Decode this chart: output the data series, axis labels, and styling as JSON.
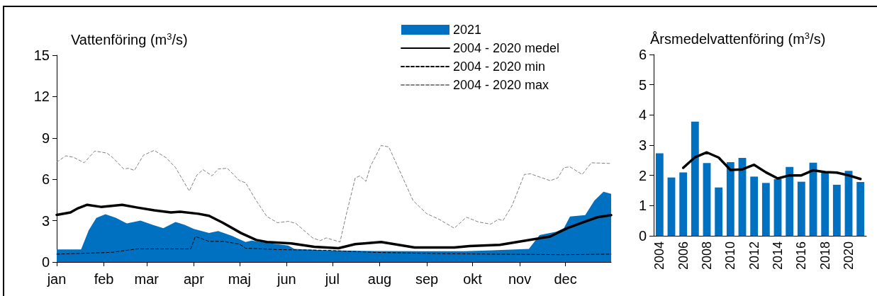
{
  "chart_data": [
    {
      "type": "line",
      "ylabel": "Vattenföring (m$^{3}$/s)",
      "legend": "top",
      "marker": "none",
      "xlim": [
        "--01-01",
        "--12-31"
      ],
      "xticks": [
        {
          "value": "--01-01",
          "label": "jan"
        },
        {
          "value": "--02-01",
          "label": "feb"
        },
        {
          "value": "--03-01",
          "label": "mar"
        },
        {
          "value": "--04-01",
          "label": "apr"
        },
        {
          "value": "--05-01",
          "label": "maj"
        },
        {
          "value": "--06-01",
          "label": "jun"
        },
        {
          "value": "--07-01",
          "label": "jul"
        },
        {
          "value": "--08-01",
          "label": "aug"
        },
        {
          "value": "--09-01",
          "label": "sep"
        },
        {
          "value": "--10-01",
          "label": "okt"
        },
        {
          "value": "--11-01",
          "label": "nov"
        },
        {
          "value": "--12-01",
          "label": "dec"
        }
      ],
      "ylim": [
        0,
        15
      ],
      "yticks": [
        0,
        3,
        6,
        9,
        12,
        15
      ],
      "series": [
        {
          "name": "2021",
          "type": "area",
          "color": "#0070c0",
          "x": [
            "--01-01",
            "--01-17",
            "--01-22",
            "--01-27",
            "--02-02",
            "--02-09",
            "--02-16",
            "--02-25",
            "--03-05",
            "--03-12",
            "--03-20",
            "--03-26",
            "--04-01",
            "--04-11",
            "--04-17",
            "--04-26",
            "--05-05",
            "--05-09",
            "--05-18",
            "--06-02",
            "--06-06",
            "--06-27",
            "--07-29",
            "--08-29",
            "--09-26",
            "--10-14",
            "--11-07",
            "--11-14",
            "--11-25",
            "--11-30",
            "--12-04",
            "--12-14",
            "--12-20",
            "--12-26",
            "--12-31"
          ],
          "values": [
            0.91,
            0.91,
            2.3,
            3.2,
            3.47,
            3.2,
            2.8,
            3.0,
            2.7,
            2.45,
            2.9,
            2.7,
            2.4,
            2.1,
            2.25,
            1.9,
            1.45,
            1.55,
            1.4,
            1.2,
            0.95,
            0.85,
            0.8,
            0.78,
            0.78,
            0.85,
            0.95,
            1.95,
            2.2,
            2.45,
            3.3,
            3.4,
            4.45,
            5.1,
            4.95
          ]
        },
        {
          "name": "2004 - 2020 medel",
          "color": "#000000",
          "line_style": "solid",
          "x": [
            "--01-01",
            "--01-10",
            "--01-15",
            "--01-21",
            "--01-30",
            "--02-13",
            "--02-23",
            "--03-06",
            "--03-17",
            "--03-23",
            "--04-04",
            "--04-11",
            "--04-20",
            "--05-02",
            "--05-12",
            "--05-19",
            "--06-04",
            "--06-19",
            "--06-27",
            "--07-05",
            "--07-16",
            "--08-02",
            "--08-24",
            "--09-19",
            "--09-29",
            "--10-19",
            "--11-02",
            "--11-21",
            "--12-02",
            "--12-13",
            "--12-22",
            "--12-31"
          ],
          "values": [
            3.42,
            3.6,
            3.9,
            4.15,
            4.0,
            4.15,
            3.95,
            3.75,
            3.6,
            3.65,
            3.5,
            3.35,
            2.85,
            2.1,
            1.6,
            1.45,
            1.35,
            1.1,
            1.05,
            1.0,
            1.3,
            1.45,
            1.05,
            1.05,
            1.15,
            1.25,
            1.5,
            1.85,
            2.45,
            2.9,
            3.25,
            3.4
          ]
        },
        {
          "name": "2004 - 2020 min",
          "color": "#000000",
          "line_style": "dashed",
          "x": [
            "--01-01",
            "--01-16",
            "--02-06",
            "--02-23",
            "--03-30",
            "--04-02",
            "--04-11",
            "--04-20",
            "--05-01",
            "--05-05",
            "--05-27",
            "--06-27",
            "--07-29",
            "--09-13",
            "--11-30",
            "--12-31"
          ],
          "values": [
            0.57,
            0.62,
            0.7,
            0.95,
            0.95,
            1.85,
            1.5,
            1.5,
            1.3,
            1.0,
            0.9,
            0.85,
            0.7,
            0.6,
            0.53,
            0.57
          ]
        },
        {
          "name": "2004 - 2020 max",
          "color": "#808080",
          "line_style": "dashed",
          "x": [
            "--01-01",
            "--01-07",
            "--01-12",
            "--01-19",
            "--01-26",
            "--02-03",
            "--02-07",
            "--02-14",
            "--02-17",
            "--02-21",
            "--02-27",
            "--03-06",
            "--03-14",
            "--03-20",
            "--03-29",
            "--04-03",
            "--04-07",
            "--04-13",
            "--04-17",
            "--04-23",
            "--05-01",
            "--05-05",
            "--05-12",
            "--05-19",
            "--05-26",
            "--06-02",
            "--06-07",
            "--06-18",
            "--06-23",
            "--06-27",
            "--07-06",
            "--07-10",
            "--07-16",
            "--07-19",
            "--07-23",
            "--07-26",
            "--08-02",
            "--08-07",
            "--08-13",
            "--08-23",
            "--09-01",
            "--09-09",
            "--09-19",
            "--09-27",
            "--10-05",
            "--10-13",
            "--10-18",
            "--10-21",
            "--10-27",
            "--11-04",
            "--11-08",
            "--11-21",
            "--11-26",
            "--11-30",
            "--12-04",
            "--12-12",
            "--12-18",
            "--12-30"
          ],
          "values": [
            7.25,
            7.7,
            7.6,
            7.2,
            8.05,
            7.9,
            7.55,
            6.75,
            6.8,
            6.65,
            7.75,
            8.1,
            7.55,
            6.85,
            5.15,
            6.3,
            6.7,
            6.25,
            6.75,
            6.8,
            5.9,
            5.75,
            4.45,
            3.3,
            2.85,
            2.95,
            2.8,
            1.75,
            1.55,
            1.75,
            1.45,
            3.4,
            6.1,
            6.25,
            5.85,
            6.95,
            8.45,
            8.35,
            6.9,
            4.45,
            3.5,
            3.1,
            2.45,
            3.25,
            2.9,
            2.75,
            3.1,
            3.0,
            4.1,
            6.35,
            6.4,
            5.9,
            6.1,
            6.85,
            6.9,
            6.35,
            7.2,
            7.15
          ]
        }
      ]
    },
    {
      "type": "bar",
      "ylabel": "Årsmedelvattenföring (m$^{3}$/s)",
      "marker": "none",
      "categories": [
        "2004",
        null,
        "2006",
        null,
        "2008",
        null,
        "2010",
        null,
        "2012",
        null,
        "2014",
        null,
        "2016",
        null,
        "2018",
        null,
        "2020",
        null
      ],
      "ylim": [
        0,
        6
      ],
      "yticks": [
        0,
        1,
        2,
        3,
        4,
        5,
        6
      ],
      "series": [
        {
          "color": "#0070c0",
          "values": [
            2.73,
            1.93,
            2.1,
            3.78,
            2.41,
            1.6,
            2.44,
            2.58,
            1.96,
            1.75,
            1.88,
            2.28,
            1.79,
            2.42,
            2.1,
            1.69,
            2.15,
            1.78
          ]
        },
        {
          "type": "line",
          "color": "#000000",
          "line_style": "solid",
          "values": [
            null,
            null,
            2.25,
            2.6,
            2.76,
            2.59,
            2.18,
            2.2,
            2.35,
            2.1,
            1.9,
            2.0,
            2.0,
            2.17,
            2.11,
            2.09,
            2.0,
            1.88
          ]
        }
      ]
    }
  ]
}
